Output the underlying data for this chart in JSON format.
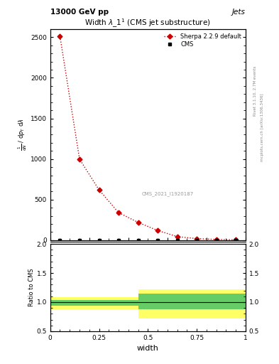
{
  "header_left": "13000 GeV pp",
  "header_right": "Jets",
  "title": "Width $\\lambda\\_1^1$ (CMS jet substructure)",
  "xlabel": "width",
  "right_label_top": "Rivet 3.1.10, 2.7M events",
  "right_label_bottom": "mcplots.cern.ch [arXiv:1306.3436]",
  "watermark": "CMS_2021_I1920187",
  "cms_x": [
    0.05,
    0.15,
    0.25,
    0.35,
    0.45,
    0.55,
    0.65,
    0.75,
    0.85,
    0.95
  ],
  "cms_y": [
    2.0,
    2.0,
    2.0,
    2.0,
    2.0,
    2.0,
    2.0,
    2.0,
    2.0,
    2.0
  ],
  "sherpa_x": [
    0.05,
    0.15,
    0.25,
    0.35,
    0.45,
    0.55,
    0.65,
    0.75,
    0.85,
    0.95
  ],
  "sherpa_y": [
    2510,
    1000,
    620,
    340,
    220,
    120,
    45,
    20,
    10,
    5
  ],
  "ylim": [
    0,
    2600
  ],
  "yticks": [
    0,
    500,
    1000,
    1500,
    2000,
    2500
  ],
  "xlim": [
    0,
    1.0
  ],
  "xticks": [
    0,
    0.25,
    0.5,
    0.75,
    1.0
  ],
  "ratio_ylim": [
    0.5,
    2.0
  ],
  "ratio_yticks": [
    0.5,
    1.0,
    1.5,
    2.0
  ],
  "cms_color": "#000000",
  "sherpa_color": "#cc0000",
  "green_color": "#66cc66",
  "yellow_color": "#ffff66",
  "ratio_ylabel": "Ratio to CMS",
  "ylabel_lines": [
    "mathrm d$^2$N",
    "mathrm d p$_{\\mathrm{T}}$ mathrm d$\\lambda$"
  ]
}
